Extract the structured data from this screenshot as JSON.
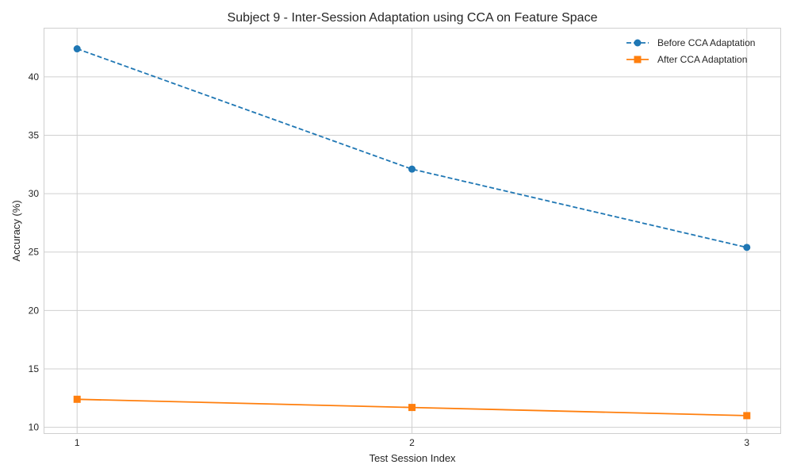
{
  "chart_data": {
    "type": "line",
    "title": "Subject 9 - Inter-Session Adaptation using CCA on Feature Space",
    "xlabel": "Test Session Index",
    "ylabel": "Accuracy (%)",
    "x": [
      1,
      2,
      3
    ],
    "x_ticks": [
      "1",
      "2",
      "3"
    ],
    "xlim": [
      0.9,
      3.1
    ],
    "ylim": [
      9.5,
      44.2
    ],
    "y_ticks": [
      10,
      15,
      20,
      25,
      30,
      35,
      40
    ],
    "grid": true,
    "legend_position": "top-right",
    "series": [
      {
        "name": "Before CCA Adaptation",
        "values": [
          42.4,
          32.1,
          25.4
        ],
        "color": "#1f77b4",
        "line_style": "dashed",
        "marker": "circle"
      },
      {
        "name": "After CCA Adaptation",
        "values": [
          12.4,
          11.7,
          11.0
        ],
        "color": "#ff7f0e",
        "line_style": "solid",
        "marker": "square"
      }
    ]
  }
}
